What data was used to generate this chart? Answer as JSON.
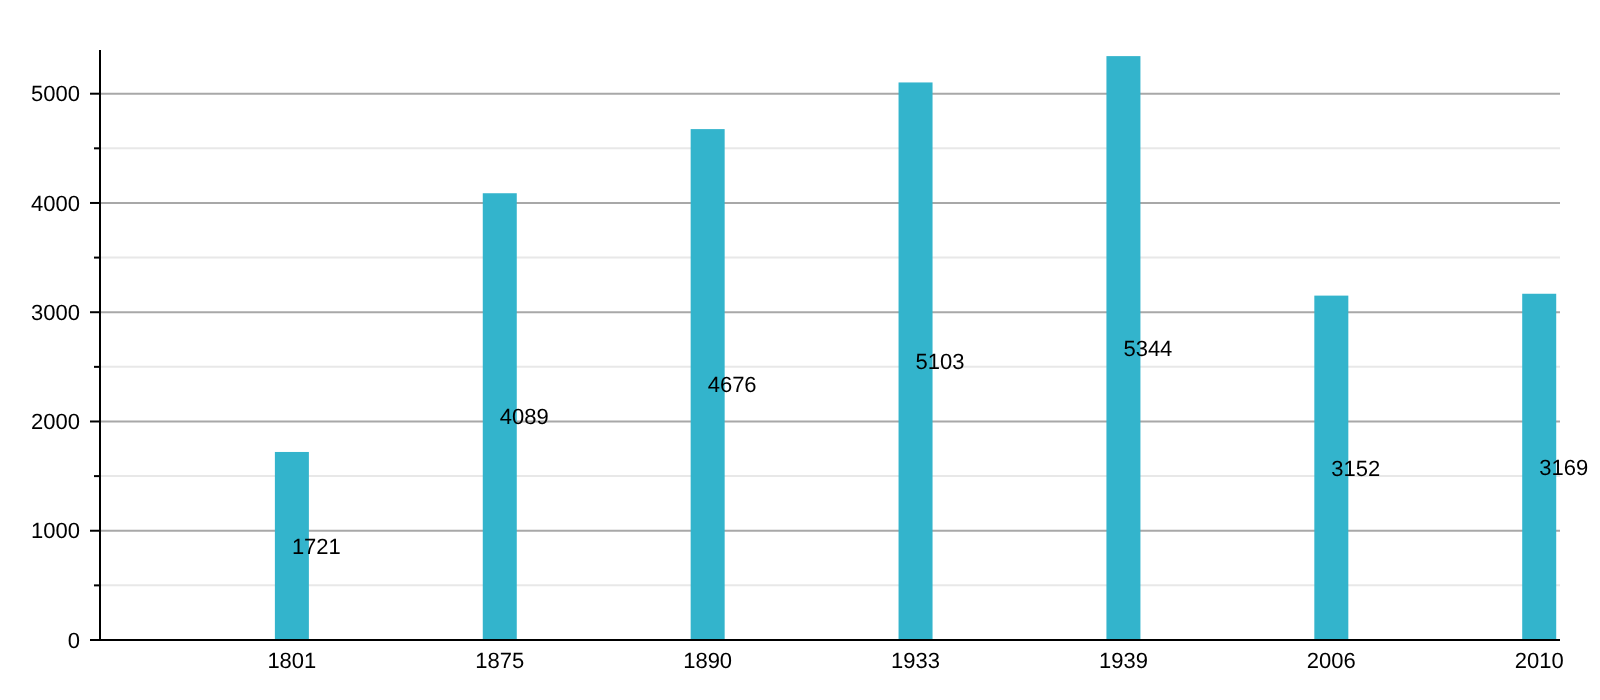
{
  "chart_data": {
    "type": "bar",
    "categories": [
      "1801",
      "1875",
      "1890",
      "1933",
      "1939",
      "2006",
      "2010"
    ],
    "values": [
      1721,
      4089,
      4676,
      5103,
      5344,
      3152,
      3169
    ],
    "color": "#33b4cc",
    "ylim": [
      0,
      5400
    ],
    "yticks": [
      0,
      {
        "value": 500,
        "label": null
      },
      1000,
      {
        "value": 1500,
        "label": null
      },
      2000,
      {
        "value": 2500,
        "label": null
      },
      3000,
      {
        "value": 3500,
        "label": null
      },
      4000,
      {
        "value": 4500,
        "label": null
      },
      5000
    ],
    "grid": "y",
    "data_labels": true
  }
}
